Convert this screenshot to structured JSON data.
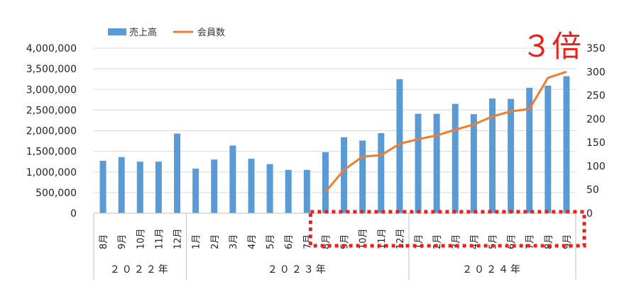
{
  "chart_data": {
    "type": "bar+line",
    "annotation": "３倍",
    "annotation_color": "#e8201e",
    "highlight_color": "#e8201e",
    "legend": {
      "placement": "top-left",
      "items": [
        {
          "label": "売上高",
          "kind": "bar",
          "color": "#5b9bd5"
        },
        {
          "label": "会員数",
          "kind": "line",
          "color": "#ed7d31"
        }
      ]
    },
    "grid": true,
    "y_left": {
      "min": 0,
      "max": 4000000,
      "step": 500000,
      "tick_labels": [
        "0",
        "500,000",
        "1,000,000",
        "1,500,000",
        "2,000,000",
        "2,500,000",
        "3,000,000",
        "3,500,000",
        "4,000,000"
      ]
    },
    "y_right": {
      "min": 0,
      "max": 350,
      "step": 50,
      "tick_labels": [
        "0",
        "50",
        "100",
        "150",
        "200",
        "250",
        "300",
        "350"
      ]
    },
    "categories": [
      "8月",
      "9月",
      "10月",
      "11月",
      "12月",
      "1月",
      "2月",
      "3月",
      "4月",
      "5月",
      "6月",
      "7月",
      "8月",
      "9月",
      "10月",
      "11月",
      "12月",
      "1月",
      "2月",
      "3月",
      "4月",
      "5月",
      "6月",
      "7月",
      "8月",
      "9月"
    ],
    "year_groups": [
      {
        "label": "２０２２年",
        "start": 0,
        "end": 4
      },
      {
        "label": "２０２３年",
        "start": 5,
        "end": 16
      },
      {
        "label": "２０２４年",
        "start": 17,
        "end": 25
      }
    ],
    "series": [
      {
        "name": "売上高",
        "axis": "left",
        "values": [
          1270000,
          1360000,
          1250000,
          1250000,
          1930000,
          1080000,
          1300000,
          1640000,
          1320000,
          1190000,
          1050000,
          1050000,
          1480000,
          1840000,
          1760000,
          1940000,
          3250000,
          2410000,
          2410000,
          2650000,
          2400000,
          2780000,
          2770000,
          3040000,
          3090000,
          3320000
        ]
      },
      {
        "name": "会員数",
        "axis": "right",
        "values": [
          null,
          null,
          null,
          null,
          null,
          null,
          null,
          null,
          null,
          null,
          null,
          null,
          45,
          92,
          120,
          123,
          147,
          157,
          165,
          177,
          188,
          205,
          216,
          221,
          287,
          300
        ]
      }
    ],
    "highlight_range": {
      "start": 12,
      "end": 25
    }
  }
}
